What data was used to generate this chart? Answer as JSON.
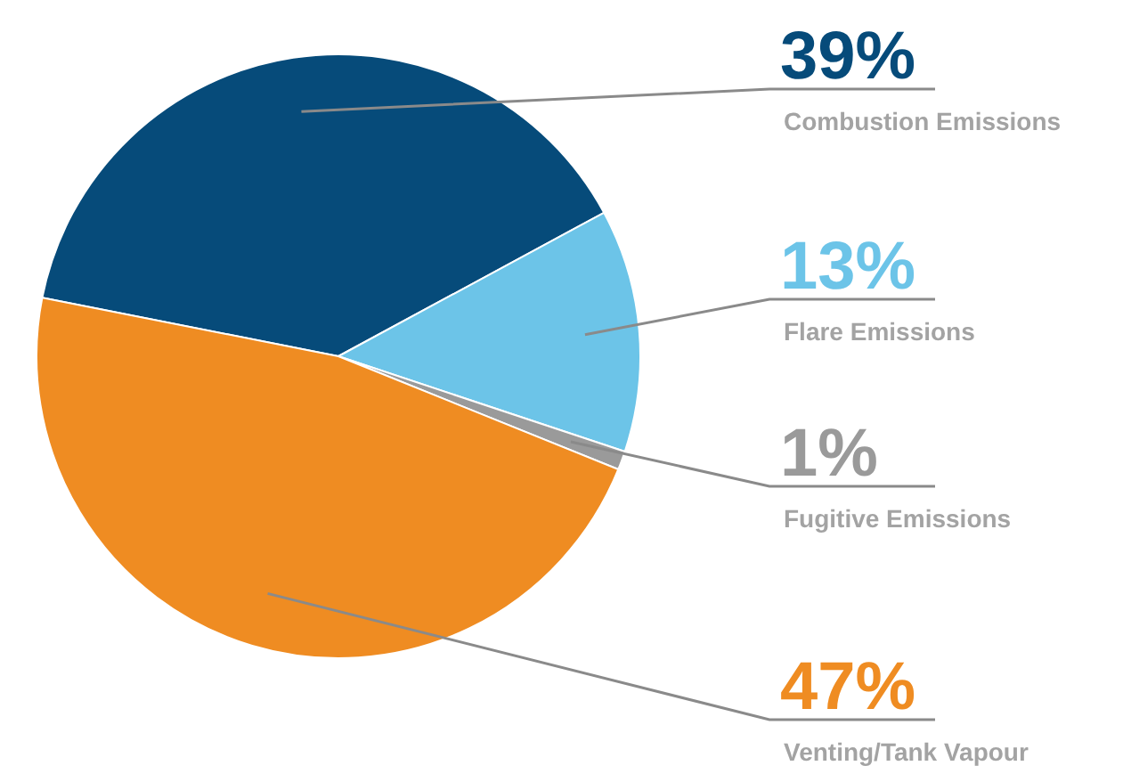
{
  "chart_data": {
    "type": "pie",
    "categories": [
      "Combustion Emissions",
      "Flare Emissions",
      "Fugitive Emissions",
      "Venting/Tank Vapour"
    ],
    "values": [
      39,
      13,
      1,
      47
    ],
    "colors": [
      "#064b7a",
      "#6cc4e8",
      "#9a9a9a",
      "#ef8c22"
    ],
    "value_labels": [
      "39%",
      "13%",
      "1%",
      "47%"
    ],
    "legend": false
  }
}
